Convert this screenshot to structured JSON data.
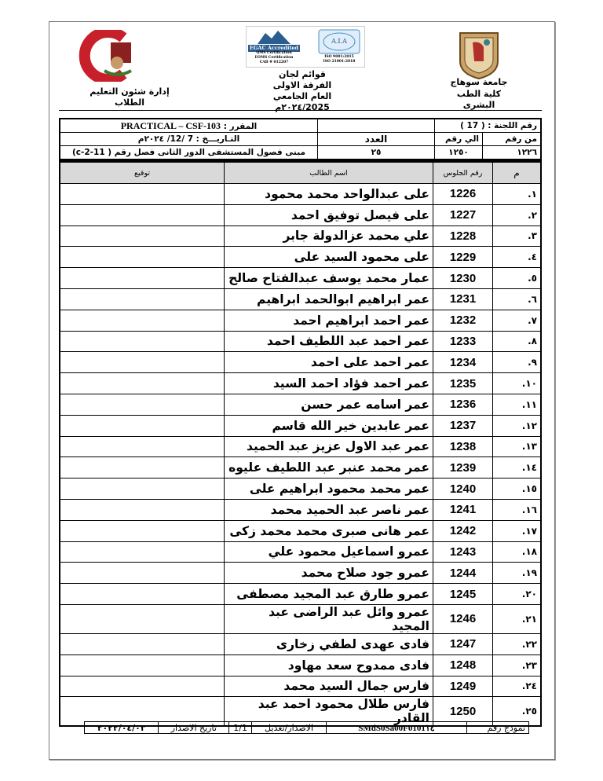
{
  "header": {
    "university_name": "جامعة سوهاج",
    "faculty_name": "كلية الطب البشرى",
    "title_line1": "قوائم لجان",
    "title_line2": "الفرقة الاولى",
    "title_line3": "العام الجامعي ٢٠٢٤/2025م",
    "department": "إدارة شئون التعليم الطلاب",
    "left_logo_text": "جامعة سوهاج - كلية الطب",
    "accreditation_text": [
      "EGAC Accredited",
      "QMS Certification",
      "EOMS Certification",
      "CAB # 012207",
      "A.I.A",
      "ISO 9001:2015",
      "ISO 21001:2018"
    ]
  },
  "info": {
    "committee_label": "رقم اللجنة : ( 17 )",
    "course_label": "المقرر :",
    "course_value": "PRACTICAL – CSF-103",
    "from_label": "من رقم",
    "to_label": "الي رقم",
    "count_label": "العدد",
    "date_text": "التـاريـــخ : 7 /12/ ٢٠٢٤م",
    "from_value": "١٢٢٦",
    "to_value": "١٢٥٠",
    "count_value": "٢٥",
    "location": "مبنى فصول المستشفى الدور الثانى فصل رقم ( c-2-11)"
  },
  "table": {
    "headers": {
      "index": "م",
      "seat": "رقم الجلوس",
      "name": "اسم الطالب",
      "signature": "توقيع"
    },
    "rows": [
      {
        "i": "١.",
        "seat": "1226",
        "name": "على عبدالواحد محمد محمود"
      },
      {
        "i": "٢.",
        "seat": "1227",
        "name": "على فيصل توفيق احمد"
      },
      {
        "i": "٣.",
        "seat": "1228",
        "name": "علي محمد عزالدولة جابر"
      },
      {
        "i": "٤.",
        "seat": "1229",
        "name": "على محمود السيد على"
      },
      {
        "i": "٥.",
        "seat": "1230",
        "name": "عمار محمد يوسف عبدالفتاح صالح"
      },
      {
        "i": "٦.",
        "seat": "1231",
        "name": "عمر ابراهيم ابوالحمد ابراهيم"
      },
      {
        "i": "٧.",
        "seat": "1232",
        "name": "عمر احمد ابراهيم احمد"
      },
      {
        "i": "٨.",
        "seat": "1233",
        "name": "عمر احمد عبد اللطيف احمد"
      },
      {
        "i": "٩.",
        "seat": "1234",
        "name": "عمر احمد على احمد"
      },
      {
        "i": "١٠.",
        "seat": "1235",
        "name": "عمر احمد فؤاد احمد السيد"
      },
      {
        "i": "١١.",
        "seat": "1236",
        "name": "عمر اسامه عمر حسن"
      },
      {
        "i": "١٢.",
        "seat": "1237",
        "name": "عمر عابدين خير الله قاسم"
      },
      {
        "i": "١٣.",
        "seat": "1238",
        "name": "عمر عبد الاول عزيز عبد الحميد"
      },
      {
        "i": "١٤.",
        "seat": "1239",
        "name": "عمر محمد عنبر عبد اللطيف عليوه"
      },
      {
        "i": "١٥.",
        "seat": "1240",
        "name": "عمر محمد محمود ابراهيم على"
      },
      {
        "i": "١٦.",
        "seat": "1241",
        "name": "عمر ناصر عبد الحميد محمد"
      },
      {
        "i": "١٧.",
        "seat": "1242",
        "name": "عمر هانى صبرى محمد محمد زكى"
      },
      {
        "i": "١٨.",
        "seat": "1243",
        "name": "عمرو اسماعيل محمود علي"
      },
      {
        "i": "١٩.",
        "seat": "1244",
        "name": "عمرو جود صلاح محمد"
      },
      {
        "i": "٢٠.",
        "seat": "1245",
        "name": "عمرو طارق عبد المجيد مصطفى"
      },
      {
        "i": "٢١.",
        "seat": "1246",
        "name": "عمرو وائل عبد الراضى عبد المجيد"
      },
      {
        "i": "٢٢.",
        "seat": "1247",
        "name": "فادى عهدى لطفي زخارى"
      },
      {
        "i": "٢٣.",
        "seat": "1248",
        "name": "فادى ممدوح سعد مهاود"
      },
      {
        "i": "٢٤.",
        "seat": "1249",
        "name": "فارس جمال السيد محمد"
      },
      {
        "i": "٢٥.",
        "seat": "1250",
        "name": "فارس طلال محمود احمد عبد القادر"
      }
    ]
  },
  "footer": {
    "form_label": "نموذج رقم",
    "form_value": "SMdS0Sa00F0101١٤",
    "version_label": "الاصدار/تعديل",
    "version_value": "1/1",
    "issue_label": "تاريخ الاصدار",
    "issue_value": "٢٠٢٢/٠٤/٠٣"
  }
}
